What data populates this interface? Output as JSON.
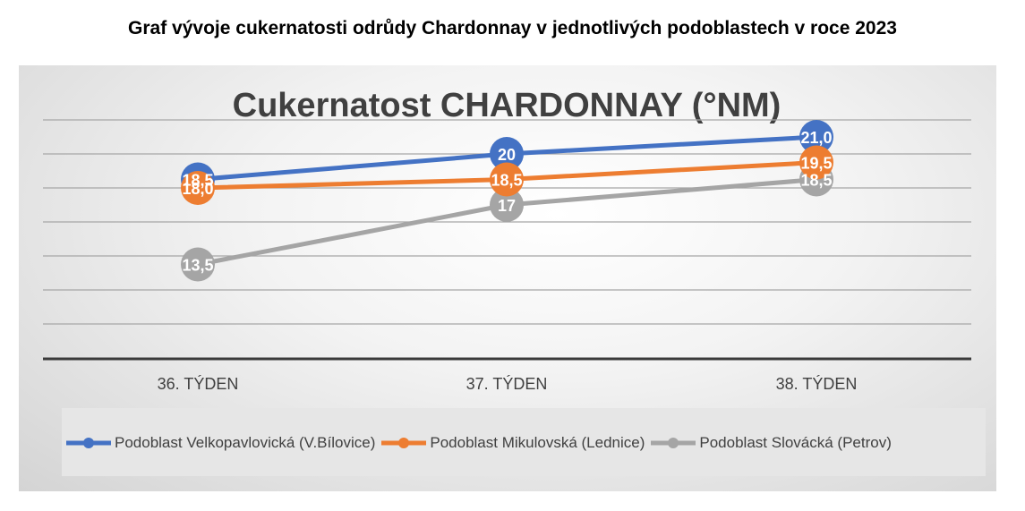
{
  "page_title": "Graf vývoje cukernatosti odrůdy Chardonnay v jednotlivých podoblastech v roce 2023",
  "chart_data": {
    "type": "line",
    "title": "Cukernatost CHARDONNAY (°NM)",
    "xlabel": "",
    "ylabel": "",
    "categories": [
      "36. TÝDEN",
      "37. TÝDEN",
      "38. TÝDEN"
    ],
    "ylim": [
      8,
      23
    ],
    "grid": true,
    "legend_position": "bottom",
    "series": [
      {
        "name": "Podoblast Velkopavlovická (V.Bílovice)",
        "color": "#4472C4",
        "values": [
          18.5,
          20,
          21.0
        ],
        "labels": [
          "18,5",
          "20",
          "21,0"
        ]
      },
      {
        "name": "Podoblast Mikulovská (Lednice)",
        "color": "#ED7D31",
        "values": [
          18.0,
          18.5,
          19.5
        ],
        "labels": [
          "18,0",
          "18,5",
          "19,5"
        ]
      },
      {
        "name": "Podoblast Slovácká (Petrov)",
        "color": "#A5A5A5",
        "values": [
          13.5,
          17,
          18.5
        ],
        "labels": [
          "13,5",
          "17",
          "18,5"
        ]
      }
    ]
  }
}
